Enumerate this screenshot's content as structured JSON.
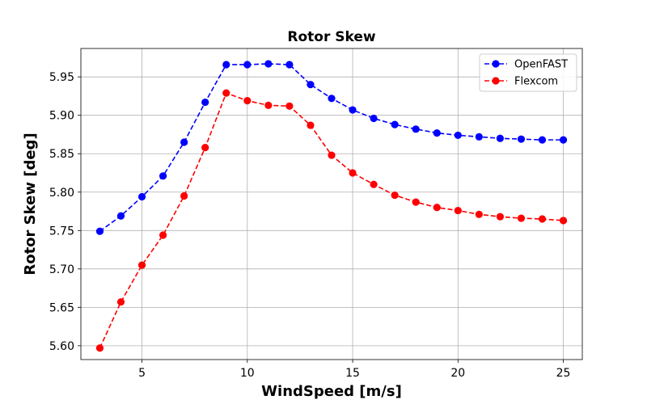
{
  "chart_data": {
    "type": "line",
    "title": "Rotor Skew",
    "xlabel": "WindSpeed [m/s]",
    "ylabel": "Rotor Skew [deg]",
    "xlim": [
      2.1,
      25.9
    ],
    "ylim": [
      5.582,
      5.987
    ],
    "xticks": [
      5,
      10,
      15,
      20,
      25
    ],
    "yticks": [
      5.6,
      5.65,
      5.7,
      5.75,
      5.8,
      5.85,
      5.9,
      5.95
    ],
    "xtick_labels": [
      "5",
      "10",
      "15",
      "20",
      "25"
    ],
    "ytick_labels": [
      "5.60",
      "5.65",
      "5.70",
      "5.75",
      "5.80",
      "5.85",
      "5.90",
      "5.95"
    ],
    "grid": true,
    "legend_position": "top-right",
    "line_style": "dashed",
    "marker": "circle",
    "x": [
      3,
      4,
      5,
      6,
      7,
      8,
      9,
      10,
      11,
      12,
      13,
      14,
      15,
      16,
      17,
      18,
      19,
      20,
      21,
      22,
      23,
      24,
      25
    ],
    "series": [
      {
        "name": "OpenFAST",
        "color": "#0000ff",
        "values": [
          5.749,
          5.769,
          5.794,
          5.821,
          5.865,
          5.917,
          5.966,
          5.966,
          5.967,
          5.966,
          5.94,
          5.922,
          5.907,
          5.896,
          5.888,
          5.882,
          5.877,
          5.874,
          5.872,
          5.87,
          5.869,
          5.868,
          5.868
        ]
      },
      {
        "name": "Flexcom",
        "color": "#ff0000",
        "values": [
          5.597,
          5.657,
          5.705,
          5.744,
          5.795,
          5.858,
          5.929,
          5.919,
          5.913,
          5.912,
          5.887,
          5.848,
          5.825,
          5.81,
          5.796,
          5.787,
          5.78,
          5.776,
          5.771,
          5.768,
          5.766,
          5.765,
          5.763
        ]
      }
    ]
  }
}
